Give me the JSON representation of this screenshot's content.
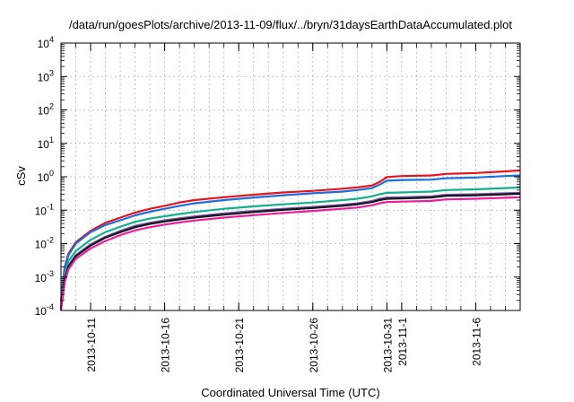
{
  "chart_data": {
    "type": "line",
    "title": "/data/run/goesPlots/archive/2013-11-09/flux/../bryn/31daysEarthDataAccumulated.plot",
    "xlabel": "Coordinated Universal Time (UTC)",
    "ylabel": "cSv",
    "yscale": "log",
    "ylim": [
      0.0001,
      10000
    ],
    "xlim": [
      "2013-10-09",
      "2013-11-09"
    ],
    "grid": true,
    "y_ticks": [
      {
        "base": "10",
        "exp": "-4",
        "value": 0.0001
      },
      {
        "base": "10",
        "exp": "-3",
        "value": 0.001
      },
      {
        "base": "10",
        "exp": "-2",
        "value": 0.01
      },
      {
        "base": "10",
        "exp": "-1",
        "value": 0.1
      },
      {
        "base": "10",
        "exp": "0",
        "value": 1
      },
      {
        "base": "10",
        "exp": "1",
        "value": 10
      },
      {
        "base": "10",
        "exp": "2",
        "value": 100
      },
      {
        "base": "10",
        "exp": "3",
        "value": 1000
      },
      {
        "base": "10",
        "exp": "4",
        "value": 10000
      }
    ],
    "x_ticks": [
      {
        "label": "2013-10-11",
        "date": "2013-10-11"
      },
      {
        "label": "2013-10-16",
        "date": "2013-10-16"
      },
      {
        "label": "2013-10-21",
        "date": "2013-10-21"
      },
      {
        "label": "2013-10-26",
        "date": "2013-10-26"
      },
      {
        "label": "2013-10-31",
        "date": "2013-10-31"
      },
      {
        "label": "2013-11-1",
        "date": "2013-11-01"
      },
      {
        "label": "2013-11-6",
        "date": "2013-11-06"
      }
    ],
    "series": [
      {
        "color": "#e8141c",
        "points": [
          [
            "2013-10-09",
            0.0002
          ],
          [
            "2013-10-09T06:00",
            0.002
          ],
          [
            "2013-10-09T12:00",
            0.005
          ],
          [
            "2013-10-10",
            0.011
          ],
          [
            "2013-10-11",
            0.024
          ],
          [
            "2013-10-12",
            0.042
          ],
          [
            "2013-10-13",
            0.06
          ],
          [
            "2013-10-14",
            0.085
          ],
          [
            "2013-10-15",
            0.11
          ],
          [
            "2013-10-16",
            0.135
          ],
          [
            "2013-10-17",
            0.17
          ],
          [
            "2013-10-18",
            0.2
          ],
          [
            "2013-10-20",
            0.245
          ],
          [
            "2013-10-22",
            0.29
          ],
          [
            "2013-10-24",
            0.34
          ],
          [
            "2013-10-26",
            0.38
          ],
          [
            "2013-10-28",
            0.44
          ],
          [
            "2013-10-29",
            0.48
          ],
          [
            "2013-10-30",
            0.55
          ],
          [
            "2013-10-30T12:00",
            0.7
          ],
          [
            "2013-10-31",
            0.98
          ],
          [
            "2013-11-01",
            1.05
          ],
          [
            "2013-11-03",
            1.1
          ],
          [
            "2013-11-04",
            1.22
          ],
          [
            "2013-11-06",
            1.3
          ],
          [
            "2013-11-08",
            1.45
          ],
          [
            "2013-11-09",
            1.55
          ]
        ]
      },
      {
        "color": "#1a6fe0",
        "points": [
          [
            "2013-10-09",
            0.00018
          ],
          [
            "2013-10-09T06:00",
            0.0018
          ],
          [
            "2013-10-09T12:00",
            0.0045
          ],
          [
            "2013-10-10",
            0.01
          ],
          [
            "2013-10-11",
            0.022
          ],
          [
            "2013-10-12",
            0.036
          ],
          [
            "2013-10-13",
            0.05
          ],
          [
            "2013-10-14",
            0.07
          ],
          [
            "2013-10-15",
            0.09
          ],
          [
            "2013-10-16",
            0.11
          ],
          [
            "2013-10-17",
            0.135
          ],
          [
            "2013-10-18",
            0.16
          ],
          [
            "2013-10-20",
            0.2
          ],
          [
            "2013-10-22",
            0.24
          ],
          [
            "2013-10-24",
            0.28
          ],
          [
            "2013-10-26",
            0.32
          ],
          [
            "2013-10-28",
            0.36
          ],
          [
            "2013-10-29",
            0.4
          ],
          [
            "2013-10-30",
            0.46
          ],
          [
            "2013-10-30T12:00",
            0.58
          ],
          [
            "2013-10-31",
            0.76
          ],
          [
            "2013-11-01",
            0.8
          ],
          [
            "2013-11-03",
            0.82
          ],
          [
            "2013-11-04",
            0.9
          ],
          [
            "2013-11-06",
            0.95
          ],
          [
            "2013-11-08",
            1.05
          ],
          [
            "2013-11-09",
            1.1
          ]
        ]
      },
      {
        "color": "#12b08c",
        "points": [
          [
            "2013-10-09",
            0.00015
          ],
          [
            "2013-10-09T06:00",
            0.0012
          ],
          [
            "2013-10-09T12:00",
            0.003
          ],
          [
            "2013-10-10",
            0.006
          ],
          [
            "2013-10-11",
            0.013
          ],
          [
            "2013-10-12",
            0.022
          ],
          [
            "2013-10-13",
            0.032
          ],
          [
            "2013-10-14",
            0.045
          ],
          [
            "2013-10-15",
            0.056
          ],
          [
            "2013-10-16",
            0.066
          ],
          [
            "2013-10-17",
            0.077
          ],
          [
            "2013-10-18",
            0.088
          ],
          [
            "2013-10-20",
            0.11
          ],
          [
            "2013-10-22",
            0.13
          ],
          [
            "2013-10-24",
            0.15
          ],
          [
            "2013-10-26",
            0.17
          ],
          [
            "2013-10-28",
            0.2
          ],
          [
            "2013-10-29",
            0.22
          ],
          [
            "2013-10-30",
            0.26
          ],
          [
            "2013-10-30T12:00",
            0.3
          ],
          [
            "2013-10-31",
            0.33
          ],
          [
            "2013-11-01",
            0.34
          ],
          [
            "2013-11-03",
            0.36
          ],
          [
            "2013-11-04",
            0.4
          ],
          [
            "2013-11-06",
            0.42
          ],
          [
            "2013-11-08",
            0.46
          ],
          [
            "2013-11-09",
            0.48
          ]
        ]
      },
      {
        "color": "#7a56b8",
        "points": [
          [
            "2013-10-09",
            0.00012
          ],
          [
            "2013-10-09T06:00",
            0.0009
          ],
          [
            "2013-10-09T12:00",
            0.0022
          ],
          [
            "2013-10-10",
            0.0045
          ],
          [
            "2013-10-11",
            0.0095
          ],
          [
            "2013-10-12",
            0.016
          ],
          [
            "2013-10-13",
            0.024
          ],
          [
            "2013-10-14",
            0.034
          ],
          [
            "2013-10-15",
            0.042
          ],
          [
            "2013-10-16",
            0.05
          ],
          [
            "2013-10-17",
            0.057
          ],
          [
            "2013-10-18",
            0.065
          ],
          [
            "2013-10-20",
            0.08
          ],
          [
            "2013-10-22",
            0.095
          ],
          [
            "2013-10-24",
            0.11
          ],
          [
            "2013-10-26",
            0.125
          ],
          [
            "2013-10-28",
            0.145
          ],
          [
            "2013-10-29",
            0.16
          ],
          [
            "2013-10-30",
            0.19
          ],
          [
            "2013-10-30T12:00",
            0.22
          ],
          [
            "2013-10-31",
            0.24
          ],
          [
            "2013-11-01",
            0.245
          ],
          [
            "2013-11-03",
            0.26
          ],
          [
            "2013-11-04",
            0.29
          ],
          [
            "2013-11-06",
            0.3
          ],
          [
            "2013-11-08",
            0.32
          ],
          [
            "2013-11-09",
            0.33
          ]
        ]
      },
      {
        "color": "#161616",
        "points": [
          [
            "2013-10-09",
            0.00011
          ],
          [
            "2013-10-09T06:00",
            0.00085
          ],
          [
            "2013-10-09T12:00",
            0.002
          ],
          [
            "2013-10-10",
            0.0042
          ],
          [
            "2013-10-11",
            0.0088
          ],
          [
            "2013-10-12",
            0.015
          ],
          [
            "2013-10-13",
            0.022
          ],
          [
            "2013-10-14",
            0.031
          ],
          [
            "2013-10-15",
            0.039
          ],
          [
            "2013-10-16",
            0.046
          ],
          [
            "2013-10-17",
            0.053
          ],
          [
            "2013-10-18",
            0.06
          ],
          [
            "2013-10-20",
            0.074
          ],
          [
            "2013-10-22",
            0.088
          ],
          [
            "2013-10-24",
            0.102
          ],
          [
            "2013-10-26",
            0.116
          ],
          [
            "2013-10-28",
            0.135
          ],
          [
            "2013-10-29",
            0.15
          ],
          [
            "2013-10-30",
            0.175
          ],
          [
            "2013-10-30T12:00",
            0.2
          ],
          [
            "2013-10-31",
            0.22
          ],
          [
            "2013-11-01",
            0.225
          ],
          [
            "2013-11-03",
            0.24
          ],
          [
            "2013-11-04",
            0.27
          ],
          [
            "2013-11-06",
            0.28
          ],
          [
            "2013-11-08",
            0.3
          ],
          [
            "2013-11-09",
            0.31
          ]
        ]
      },
      {
        "color": "#ee1c9c",
        "points": [
          [
            "2013-10-09",
            0.0001
          ],
          [
            "2013-10-09T06:00",
            0.0007
          ],
          [
            "2013-10-09T12:00",
            0.0017
          ],
          [
            "2013-10-10",
            0.0035
          ],
          [
            "2013-10-11",
            0.0072
          ],
          [
            "2013-10-12",
            0.012
          ],
          [
            "2013-10-13",
            0.018
          ],
          [
            "2013-10-14",
            0.025
          ],
          [
            "2013-10-15",
            0.031
          ],
          [
            "2013-10-16",
            0.037
          ],
          [
            "2013-10-17",
            0.043
          ],
          [
            "2013-10-18",
            0.049
          ],
          [
            "2013-10-20",
            0.06
          ],
          [
            "2013-10-22",
            0.071
          ],
          [
            "2013-10-24",
            0.083
          ],
          [
            "2013-10-26",
            0.095
          ],
          [
            "2013-10-28",
            0.11
          ],
          [
            "2013-10-29",
            0.12
          ],
          [
            "2013-10-30",
            0.14
          ],
          [
            "2013-10-30T12:00",
            0.16
          ],
          [
            "2013-10-31",
            0.175
          ],
          [
            "2013-11-01",
            0.18
          ],
          [
            "2013-11-03",
            0.19
          ],
          [
            "2013-11-04",
            0.21
          ],
          [
            "2013-11-06",
            0.22
          ],
          [
            "2013-11-08",
            0.235
          ],
          [
            "2013-11-09",
            0.245
          ]
        ]
      }
    ]
  }
}
